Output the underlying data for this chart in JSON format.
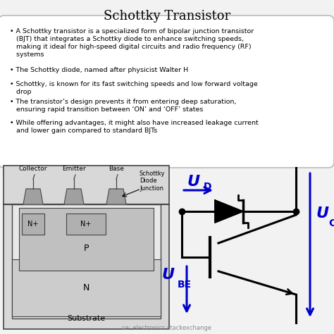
{
  "title": "Schottky Transistor",
  "bg_color": "#f2f2f2",
  "box_bg": "white",
  "box_edge": "#bbbbbb",
  "bullet_points": [
    "A Schottky transistor is a specialized form of bipolar junction transistor\n   (BJT) that integrates a Schottky diode to enhance switching speeds,\n   making it ideal for high-speed digital circuits and radio frequency (RF)\n   systems",
    "The Schottky diode, named after physicist Walter H",
    "Schottky, is known for its fast switching speeds and low forward voltage\n   drop",
    "The transistor’s design prevents it from entering deep saturation,\n   ensuring rapid transition between ‘ON’ and ‘OFF’ states",
    "While offering advantages, it might also have increased leakage current\n   and lower gain compared to standard BJTs"
  ],
  "label_collector": "Collector",
  "label_emitter": "Emitter",
  "label_base": "Base",
  "label_schottky": "Schottky\nDiode\nJunction",
  "label_np1": "N+",
  "label_np2": "N+",
  "label_p": "P",
  "label_n": "N",
  "label_substrate": "Substrate",
  "label_ud": "U",
  "label_ud_sub": "D",
  "label_ube": "U",
  "label_ube_sub": "BE",
  "label_uce": "U",
  "label_uce_sub": "CE",
  "source_text": "ce: electronics.stackexchange",
  "blue_color": "#0000cc",
  "black_color": "#000000",
  "gray_color": "#888888",
  "substrate_color": "#d8d8d8",
  "n_color": "#cccccc",
  "p_color": "#c0c0c0",
  "np_color": "#b0b0b0",
  "contact_color": "#a0a0a0",
  "dark_gray": "#444444"
}
